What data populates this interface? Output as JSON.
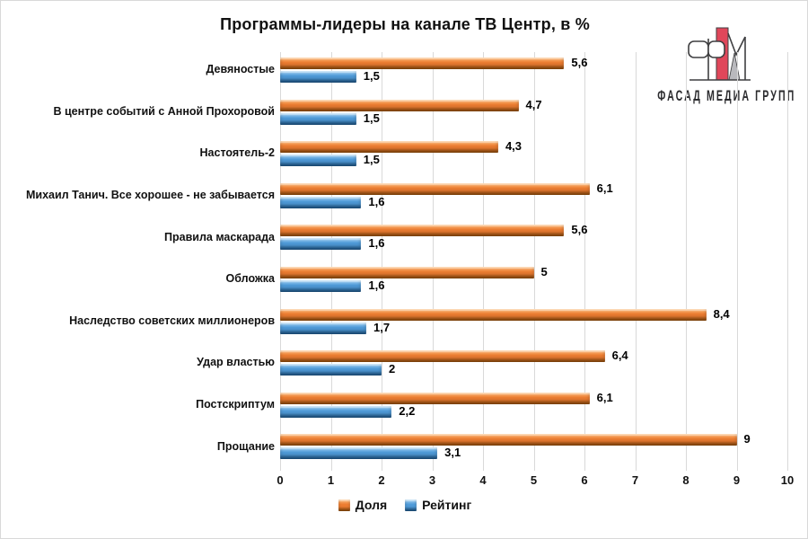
{
  "page": {
    "background": "#ffffff",
    "border_color": "#d9d9d9"
  },
  "logo": {
    "text": "ФАСАД МЕДИА ГРУПП",
    "red": "#E0475A",
    "gray": "#B9B9BD",
    "outline": "#3F3F41"
  },
  "chart_data": {
    "type": "bar",
    "orientation": "horizontal",
    "title": "Программы-лидеры на канале ТВ Центр, в %",
    "categories": [
      "Девяностые",
      "В центре событий с Анной Прохоровой",
      "Настоятель-2",
      "Михаил Танич. Все хорошее - не забывается",
      "Правила маскарада",
      "Обложка",
      "Наследство советских миллионеров",
      "Удар властью",
      "Постскриптум",
      "Прощание"
    ],
    "series": [
      {
        "name": "Доля",
        "color": "#ED7D31",
        "color_light": "#FBBE7F",
        "color_dark": "#A0540A",
        "values": [
          5.6,
          4.7,
          4.3,
          6.1,
          5.6,
          5,
          8.4,
          6.4,
          6.1,
          9
        ],
        "labels": [
          "5,6",
          "4,7",
          "4,3",
          "6,1",
          "5,6",
          "5",
          "8,4",
          "6,4",
          "6,1",
          "9"
        ]
      },
      {
        "name": "Рейтинг",
        "color": "#4F9BD9",
        "color_light": "#A9D3F2",
        "color_dark": "#1F5E96",
        "values": [
          1.5,
          1.5,
          1.5,
          1.6,
          1.6,
          1.6,
          1.7,
          2,
          2.2,
          3.1
        ],
        "labels": [
          "1,5",
          "1,5",
          "1,5",
          "1,6",
          "1,6",
          "1,6",
          "1,7",
          "2",
          "2,2",
          "3,1"
        ]
      }
    ],
    "x_ticks": [
      "0",
      "1",
      "2",
      "3",
      "4",
      "5",
      "6",
      "7",
      "8",
      "9",
      "10"
    ],
    "xlim": [
      0,
      10
    ],
    "grid": "vertical-gridlines",
    "gridline_color": "#D9D9D9",
    "legend_position": "bottom-center"
  }
}
